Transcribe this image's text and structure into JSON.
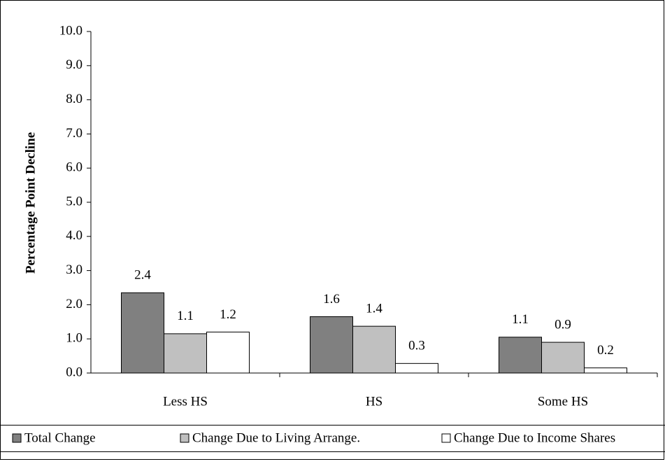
{
  "chart_data": {
    "type": "bar",
    "y_label": "Percentage Point Decline",
    "categories": [
      "Less HS",
      "HS",
      "Some HS"
    ],
    "series": [
      {
        "name": "Total Change",
        "color": "#808080",
        "values": [
          2.35,
          1.65,
          1.05
        ],
        "value_labels": [
          "2.4",
          "1.6",
          "1.1"
        ]
      },
      {
        "name": "Change Due to Living Arrange.",
        "color": "#c0c0c0",
        "values": [
          1.15,
          1.37,
          0.9
        ],
        "value_labels": [
          "1.1",
          "1.4",
          "0.9"
        ]
      },
      {
        "name": "Change Due to Income Shares",
        "color": "#ffffff",
        "values": [
          1.2,
          0.28,
          0.15
        ],
        "value_labels": [
          "1.2",
          "0.3",
          "0.2"
        ]
      }
    ],
    "ylim": [
      0,
      10
    ],
    "yticks": [
      {
        "value": 0,
        "label": "0.0"
      },
      {
        "value": 1,
        "label": "1.0"
      },
      {
        "value": 2,
        "label": "2.0"
      },
      {
        "value": 3,
        "label": "3.0"
      },
      {
        "value": 4,
        "label": "4.0"
      },
      {
        "value": 5,
        "label": "5.0"
      },
      {
        "value": 6,
        "label": "6.0"
      },
      {
        "value": 7,
        "label": "7.0"
      },
      {
        "value": 8,
        "label": "8.0"
      },
      {
        "value": 9,
        "label": "9.0"
      },
      {
        "value": 10,
        "label": "10.0"
      }
    ],
    "legend": "bottom"
  }
}
